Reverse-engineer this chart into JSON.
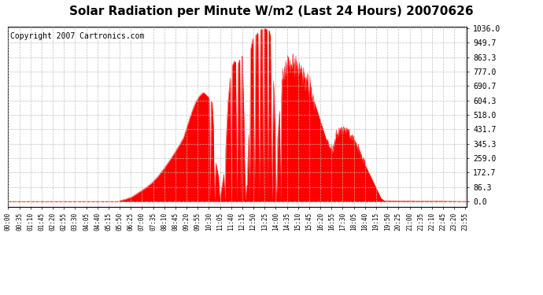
{
  "title": "Solar Radiation per Minute W/m2 (Last 24 Hours) 20070626",
  "copyright_text": "Copyright 2007 Cartronics.com",
  "y_ticks": [
    0.0,
    86.3,
    172.7,
    259.0,
    345.3,
    431.7,
    518.0,
    604.3,
    690.7,
    777.0,
    863.3,
    949.7,
    1036.0
  ],
  "y_max": 1036.0,
  "y_min": 0.0,
  "fill_color": "#FF0000",
  "line_color": "#FF0000",
  "dashed_line_color": "#FF0000",
  "bg_color": "#FFFFFF",
  "grid_color": "#AAAAAA",
  "title_fontsize": 11,
  "copyright_fontsize": 7,
  "x_labels": [
    "00:00",
    "00:35",
    "01:10",
    "01:45",
    "02:20",
    "02:55",
    "03:30",
    "04:05",
    "04:40",
    "05:15",
    "05:50",
    "06:25",
    "07:00",
    "07:35",
    "08:10",
    "08:45",
    "09:20",
    "09:55",
    "10:30",
    "11:05",
    "11:40",
    "12:15",
    "12:50",
    "13:25",
    "14:00",
    "14:35",
    "15:10",
    "15:45",
    "16:20",
    "16:55",
    "17:30",
    "18:05",
    "18:40",
    "19:15",
    "19:50",
    "20:25",
    "21:00",
    "21:35",
    "22:10",
    "22:45",
    "23:20",
    "23:55"
  ]
}
